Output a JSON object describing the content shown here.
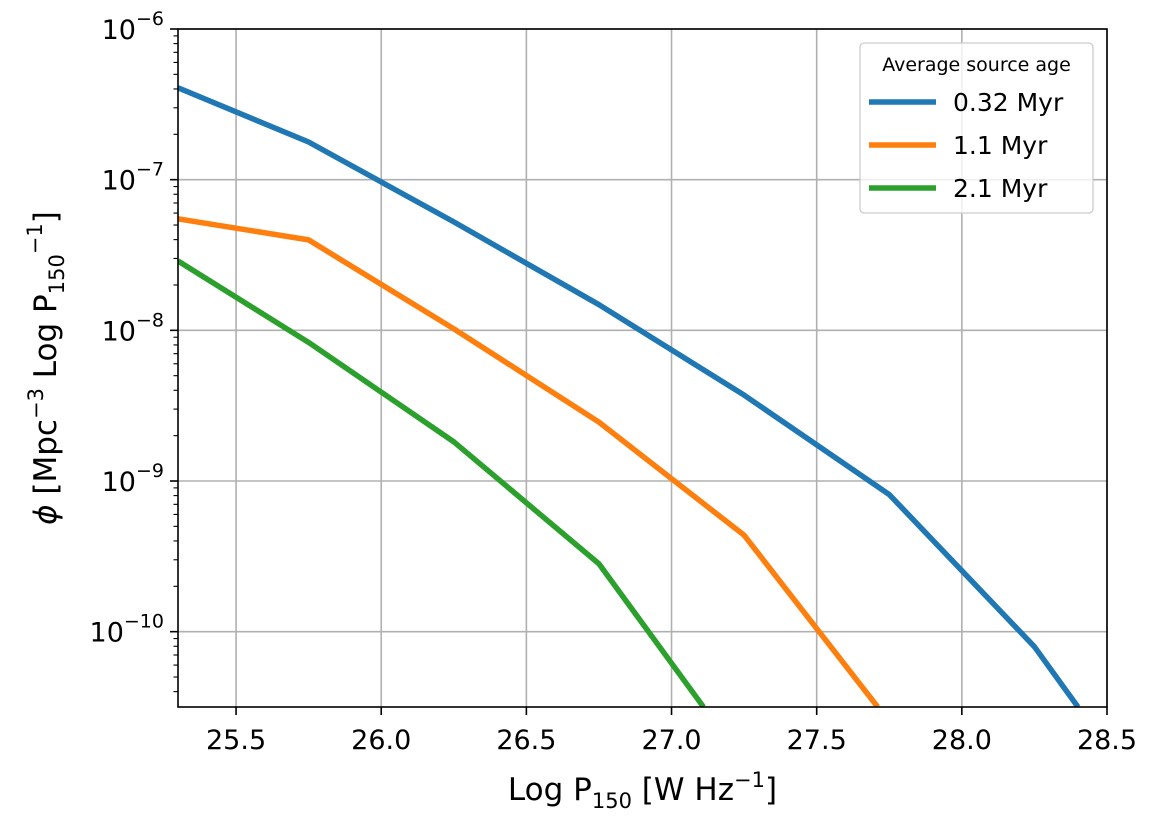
{
  "chart_data": {
    "type": "line",
    "title": "",
    "xlabel": {
      "base": "Log P",
      "sub": "150",
      "rest": " [W Hz",
      "sup": "−1",
      "end": "]"
    },
    "ylabel": {
      "phi": "ϕ",
      "a": " [Mpc",
      "sup1": "−3",
      "b": " Log P",
      "sub": "150",
      "sup2": "−1",
      "end": "]"
    },
    "xlim": [
      25.3,
      28.5
    ],
    "ylim_log10": [
      -10.5,
      -6
    ],
    "yscale": "log",
    "grid": true,
    "xticks": [
      {
        "value": 25.5,
        "label": "25.5"
      },
      {
        "value": 26.0,
        "label": "26.0"
      },
      {
        "value": 26.5,
        "label": "26.5"
      },
      {
        "value": 27.0,
        "label": "27.0"
      },
      {
        "value": 27.5,
        "label": "27.5"
      },
      {
        "value": 28.0,
        "label": "28.0"
      },
      {
        "value": 28.5,
        "label": "28.5"
      }
    ],
    "yticks": [
      {
        "exp": -6,
        "base": "10",
        "sup": "−6"
      },
      {
        "exp": -7,
        "base": "10",
        "sup": "−7"
      },
      {
        "exp": -8,
        "base": "10",
        "sup": "−8"
      },
      {
        "exp": -9,
        "base": "10",
        "sup": "−9"
      },
      {
        "exp": -10,
        "base": "10",
        "sup": "−10"
      }
    ],
    "legend": {
      "title": "Average source age",
      "position": "top-right"
    },
    "series": [
      {
        "name": "0.32 Myr",
        "color": "#1f77b4",
        "x": [
          25.3,
          25.75,
          26.25,
          26.75,
          27.25,
          27.75,
          28.25,
          28.4
        ],
        "log10_y": [
          -6.39,
          -6.75,
          -7.28,
          -7.83,
          -8.43,
          -9.09,
          -10.1,
          -10.5
        ]
      },
      {
        "name": "1.1 Myr",
        "color": "#ff7f0e",
        "x": [
          25.3,
          25.75,
          26.25,
          26.75,
          27.25,
          27.71
        ],
        "log10_y": [
          -7.26,
          -7.4,
          -7.99,
          -8.61,
          -9.36,
          -10.5
        ]
      },
      {
        "name": "2.1 Myr",
        "color": "#2ca02c",
        "x": [
          25.3,
          25.75,
          26.25,
          26.75,
          27.11
        ],
        "log10_y": [
          -7.54,
          -8.08,
          -8.74,
          -9.55,
          -10.5
        ]
      }
    ]
  }
}
